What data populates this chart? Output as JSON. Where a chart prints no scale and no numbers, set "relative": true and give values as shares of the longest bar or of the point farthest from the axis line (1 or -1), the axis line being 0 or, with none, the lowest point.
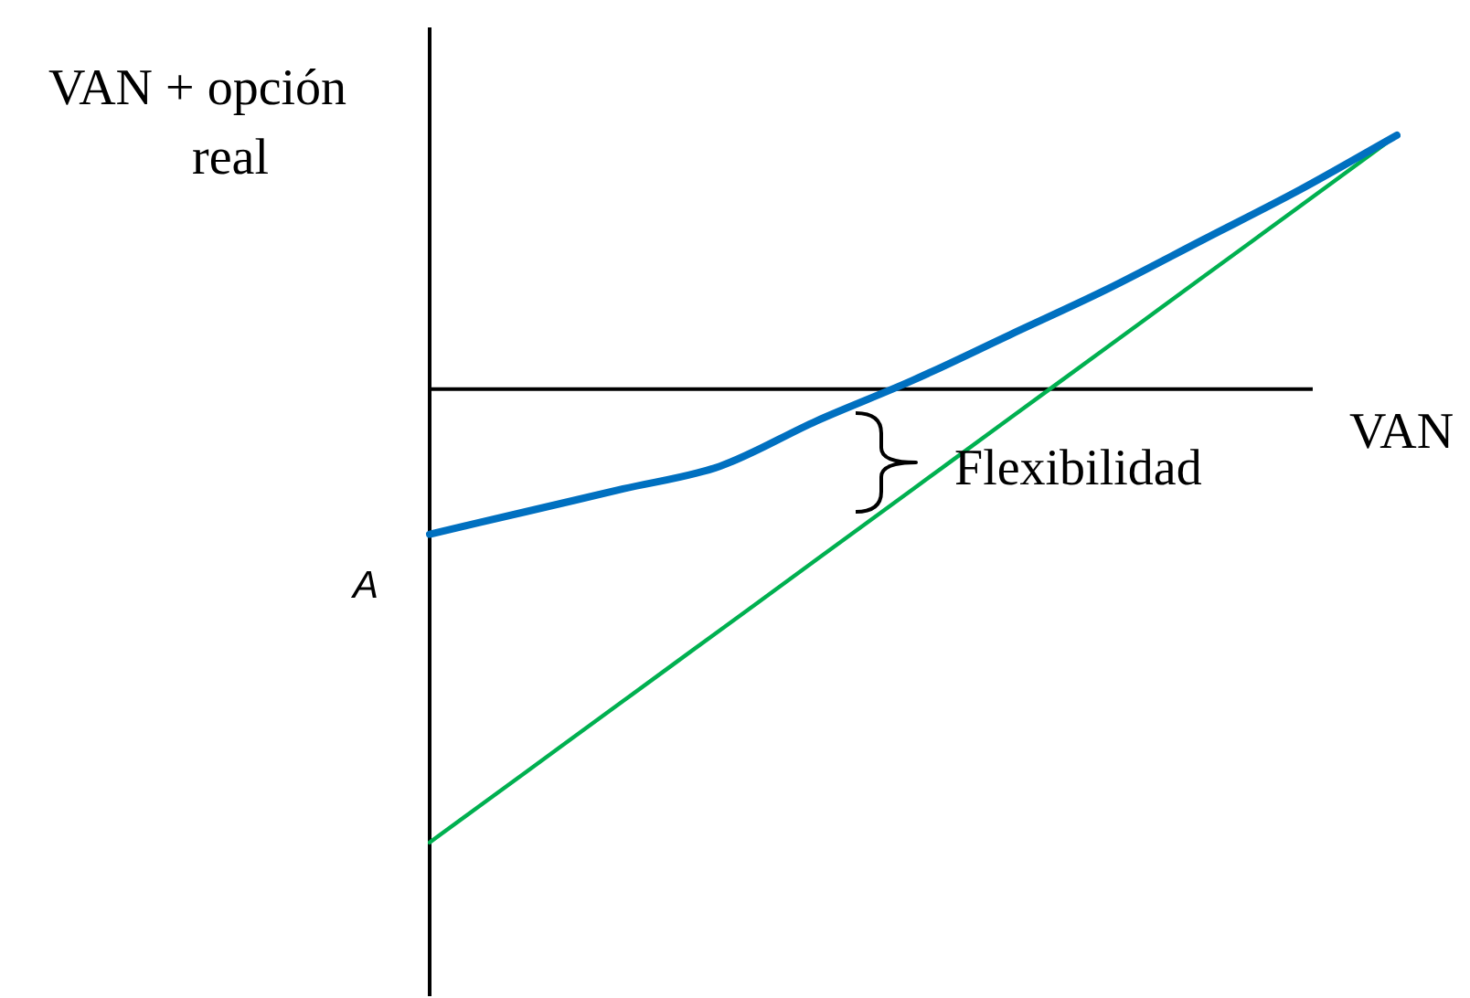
{
  "chart_data": {
    "type": "line",
    "xlabel": "VAN",
    "ylabel": "VAN + opción real",
    "annotations": [
      "Flexibilidad",
      "A"
    ],
    "relative": true,
    "marker": "none",
    "categories": [
      null,
      null,
      null,
      null,
      null,
      null,
      null,
      null,
      null,
      null,
      null
    ],
    "series": [
      {
        "color": "#0070c0",
        "values": [
          -0.32,
          -0.27,
          -0.22,
          -0.17,
          -0.07,
          0.02,
          0.12,
          0.22,
          0.33,
          0.44,
          0.56
        ]
      },
      {
        "color": "#00b050",
        "values": [
          -1,
          -0.844,
          -0.688,
          -0.532,
          -0.376,
          -0.22,
          -0.064,
          0.092,
          0.248,
          0.404,
          0.56
        ]
      }
    ]
  }
}
